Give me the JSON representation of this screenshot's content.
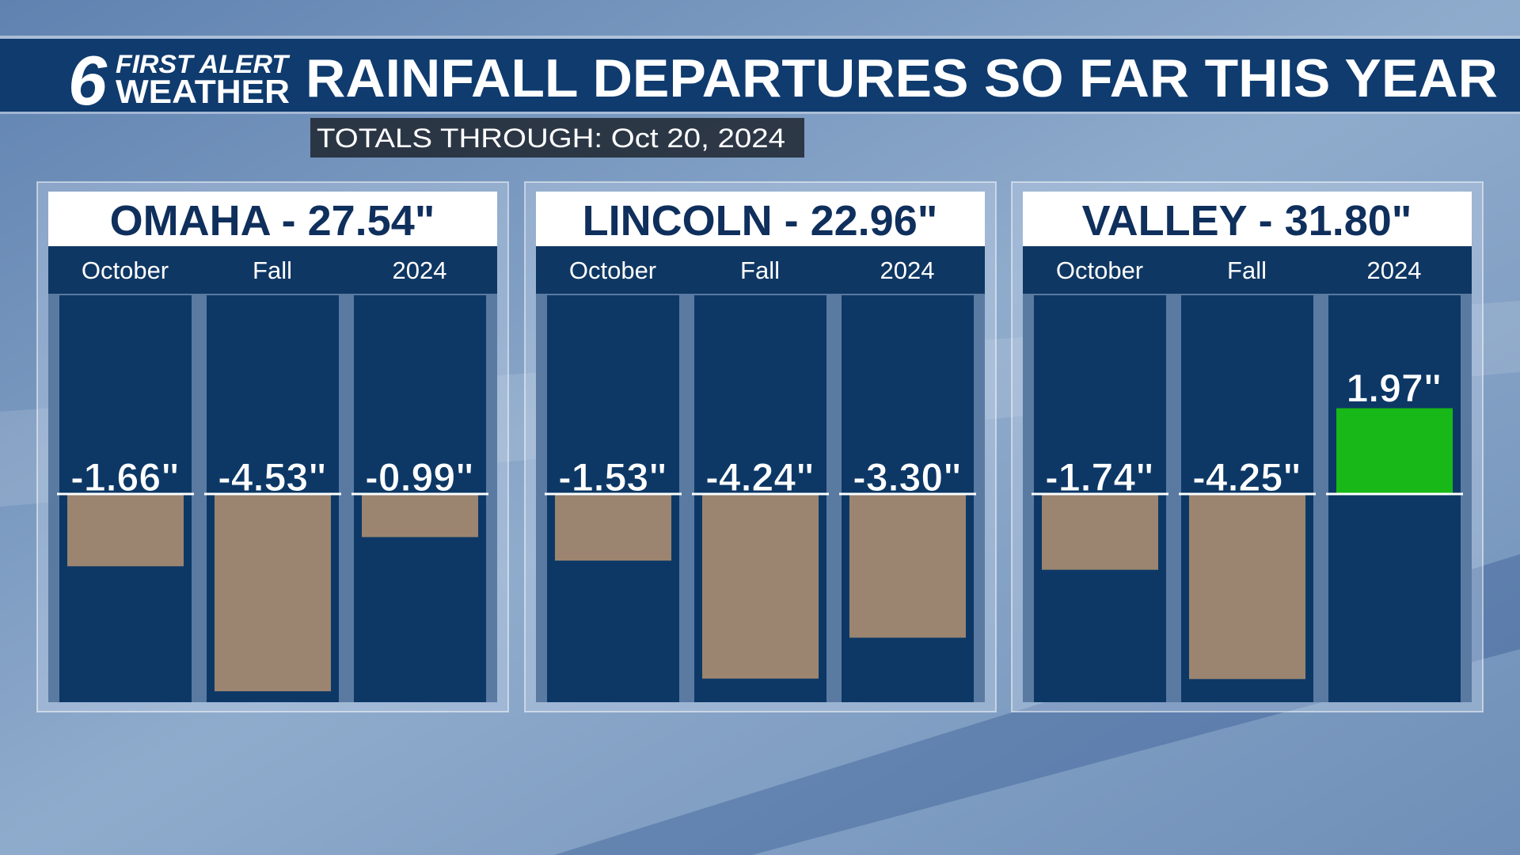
{
  "header": {
    "logo_number": "6",
    "logo_top": "FIRST ALERT",
    "logo_bottom": "WEATHER",
    "title": "RAINFALL DEPARTURES SO FAR THIS YEAR",
    "subtitle": "TOTALS THROUGH:  Oct 20, 2024"
  },
  "chart_data": [
    {
      "type": "bar",
      "title": "OMAHA - 27.54\"",
      "categories": [
        "October",
        "Fall",
        "2024"
      ],
      "values": [
        -1.66,
        -4.53,
        -0.99
      ],
      "value_labels": [
        "-1.66\"",
        "-4.53\"",
        "-0.99\""
      ],
      "colors": [
        "#9b8570",
        "#9b8570",
        "#9b8570"
      ]
    },
    {
      "type": "bar",
      "title": "LINCOLN - 22.96\"",
      "categories": [
        "October",
        "Fall",
        "2024"
      ],
      "values": [
        -1.53,
        -4.24,
        -3.3
      ],
      "value_labels": [
        "-1.53\"",
        "-4.24\"",
        "-3.30\""
      ],
      "colors": [
        "#9b8570",
        "#9b8570",
        "#9b8570"
      ]
    },
    {
      "type": "bar",
      "title": "VALLEY - 31.80\"",
      "categories": [
        "October",
        "Fall",
        "2024"
      ],
      "values": [
        -1.74,
        -4.25,
        1.97
      ],
      "value_labels": [
        "-1.74\"",
        "-4.25\"",
        "1.97\""
      ],
      "colors": [
        "#9b8570",
        "#9b8570",
        "#17b817"
      ]
    }
  ]
}
